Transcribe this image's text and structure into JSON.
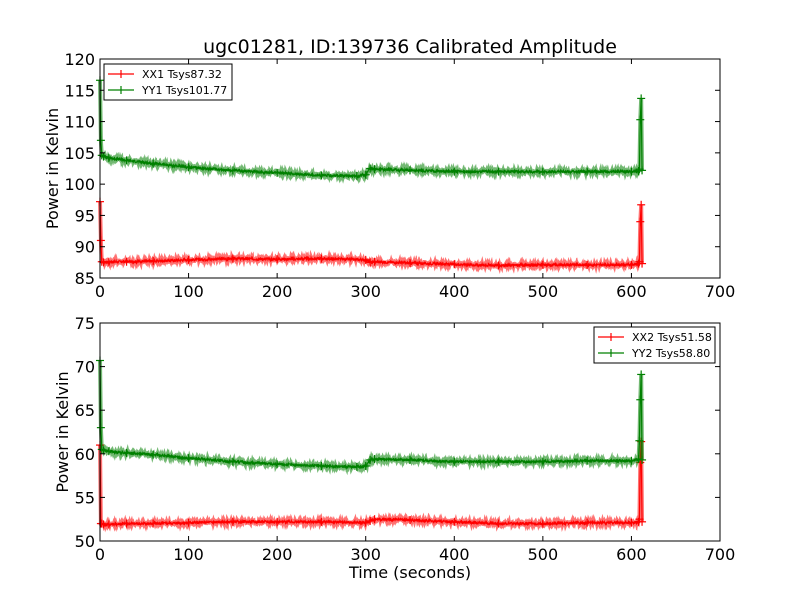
{
  "chart_data": [
    {
      "type": "line",
      "title": "ugc01281, ID:139736 Calibrated Amplitude",
      "ylabel": "Power in Kelvin",
      "xlabel": "",
      "xlim": [
        0,
        700
      ],
      "ylim": [
        85,
        120
      ],
      "xticks": [
        "0",
        "100",
        "200",
        "300",
        "400",
        "500",
        "600",
        "700"
      ],
      "yticks": [
        "85",
        "90",
        "95",
        "100",
        "105",
        "110",
        "115",
        "120"
      ],
      "legend_position": "upper-left",
      "series": [
        {
          "name": "XX1 Tsys87.32",
          "color": "#ff0000",
          "x": [
            0,
            1,
            2,
            4,
            10,
            30,
            60,
            100,
            150,
            200,
            250,
            300,
            305,
            310,
            350,
            400,
            450,
            500,
            550,
            600,
            608,
            609,
            610,
            611,
            612
          ],
          "y": [
            97.2,
            91.0,
            87.6,
            87.5,
            87.6,
            87.6,
            87.7,
            87.9,
            88.1,
            88.0,
            88.1,
            87.9,
            87.5,
            87.6,
            87.4,
            87.2,
            87.0,
            87.1,
            87.1,
            87.1,
            87.3,
            87.6,
            94.0,
            96.7,
            87.3
          ]
        },
        {
          "name": "YY1 Tsys101.77",
          "color": "#008000",
          "x": [
            0,
            1,
            2,
            4,
            10,
            30,
            60,
            100,
            150,
            200,
            250,
            290,
            300,
            305,
            310,
            350,
            400,
            450,
            500,
            550,
            600,
            608,
            609,
            610,
            611,
            612
          ],
          "y": [
            116.6,
            107.0,
            104.6,
            104.4,
            104.2,
            103.8,
            103.3,
            102.7,
            102.2,
            101.8,
            101.4,
            101.3,
            101.5,
            102.5,
            102.4,
            102.2,
            102.0,
            102.0,
            102.0,
            102.0,
            102.0,
            102.1,
            102.4,
            110.3,
            113.7,
            102.2
          ]
        }
      ]
    },
    {
      "type": "line",
      "title": "",
      "ylabel": "Power in Kelvin",
      "xlabel": "Time (seconds)",
      "xlim": [
        0,
        700
      ],
      "ylim": [
        50,
        75
      ],
      "xticks": [
        "0",
        "100",
        "200",
        "300",
        "400",
        "500",
        "600",
        "700"
      ],
      "yticks": [
        "50",
        "55",
        "60",
        "65",
        "70",
        "75"
      ],
      "legend_position": "upper-right",
      "series": [
        {
          "name": "XX2 Tsys51.58",
          "color": "#ff0000",
          "x": [
            0,
            1,
            2,
            4,
            10,
            30,
            60,
            100,
            150,
            200,
            250,
            300,
            305,
            310,
            350,
            400,
            450,
            500,
            550,
            600,
            608,
            609,
            610,
            611,
            612
          ],
          "y": [
            61.0,
            52.0,
            52.0,
            51.9,
            51.9,
            52.0,
            52.0,
            52.1,
            52.2,
            52.2,
            52.2,
            52.1,
            52.3,
            52.5,
            52.4,
            52.2,
            52.0,
            52.0,
            52.1,
            52.1,
            52.2,
            52.5,
            59.0,
            61.4,
            52.2
          ]
        },
        {
          "name": "YY2 Tsys58.80",
          "color": "#008000",
          "x": [
            0,
            1,
            2,
            4,
            10,
            30,
            60,
            100,
            150,
            200,
            250,
            290,
            300,
            305,
            310,
            350,
            400,
            450,
            500,
            550,
            600,
            608,
            609,
            610,
            611,
            612
          ],
          "y": [
            70.7,
            63.0,
            60.5,
            60.4,
            60.3,
            60.1,
            59.9,
            59.5,
            59.1,
            58.8,
            58.6,
            58.5,
            58.6,
            59.3,
            59.4,
            59.3,
            59.1,
            59.1,
            59.1,
            59.2,
            59.2,
            59.4,
            61.5,
            66.2,
            69.1,
            59.3
          ]
        }
      ]
    }
  ]
}
